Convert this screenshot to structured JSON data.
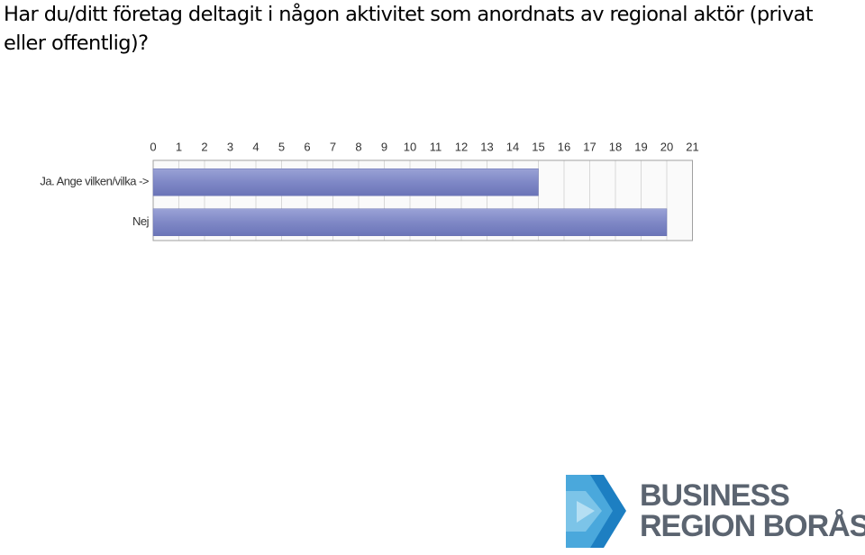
{
  "chart_data": {
    "type": "barh",
    "title": "Har du/ditt företag deltagit i någon aktivitet som anordnats av regional aktör (privat eller offentlig)?",
    "categories": [
      "Ja. Ange vilken/vilka ->",
      "Nej"
    ],
    "values": [
      15,
      20
    ],
    "color": "#7f88c6",
    "xlim": [
      0,
      21
    ],
    "xticks": [
      0,
      1,
      2,
      3,
      4,
      5,
      6,
      7,
      8,
      9,
      10,
      11,
      12,
      13,
      14,
      15,
      16,
      17,
      18,
      19,
      20,
      21
    ],
    "grid": true
  },
  "logo": {
    "line1": "BUSINESS",
    "line2": "REGION BORÅS"
  }
}
